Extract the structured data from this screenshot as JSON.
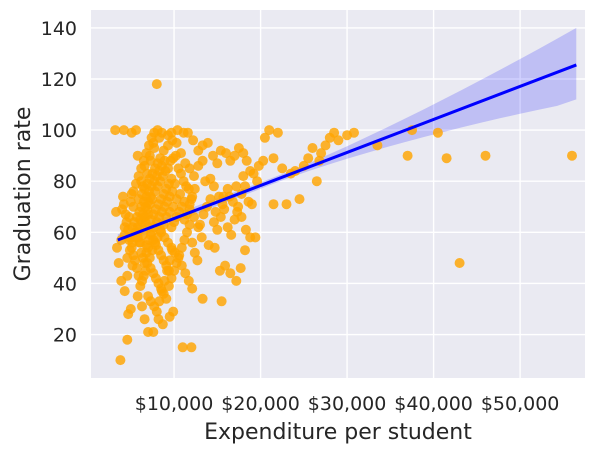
{
  "chart_data": {
    "type": "scatter",
    "title": "",
    "xlabel": "Expenditure per student",
    "ylabel": "Graduation rate",
    "xlim": [
      400,
      57500
    ],
    "ylim": [
      3,
      147
    ],
    "xticks": [
      10000,
      20000,
      30000,
      40000,
      50000
    ],
    "xtick_labels": [
      "$10,000",
      "$20,000",
      "$30,000",
      "$40,000",
      "$50,000"
    ],
    "yticks": [
      20,
      40,
      60,
      80,
      100,
      120,
      140
    ],
    "ytick_labels": [
      "20",
      "40",
      "60",
      "80",
      "100",
      "120",
      "140"
    ],
    "grid": true,
    "background": "#eaeaf2",
    "point_color": "#ffa500",
    "line_color": "#0000ff",
    "band_color": "#0000ff",
    "regression": {
      "x": [
        3500,
        56500
      ],
      "y": [
        57,
        125.5
      ],
      "ci_upper_end": 140,
      "ci_lower_end": 112
    },
    "points": [
      [
        3200,
        100
      ],
      [
        4200,
        100
      ],
      [
        5100,
        99
      ],
      [
        5600,
        100
      ],
      [
        3400,
        54
      ],
      [
        3600,
        48
      ],
      [
        3900,
        41
      ],
      [
        4300,
        37
      ],
      [
        4700,
        28
      ],
      [
        5000,
        30
      ],
      [
        3800,
        10
      ],
      [
        4600,
        43
      ],
      [
        5200,
        47
      ],
      [
        5800,
        35
      ],
      [
        6300,
        31
      ],
      [
        6600,
        26
      ],
      [
        7000,
        21
      ],
      [
        7600,
        21
      ],
      [
        8200,
        26
      ],
      [
        8700,
        24
      ],
      [
        9500,
        27
      ],
      [
        9900,
        29
      ],
      [
        11000,
        15
      ],
      [
        12000,
        15
      ],
      [
        13300,
        34
      ],
      [
        15500,
        33
      ],
      [
        4600,
        18
      ],
      [
        8000,
        118
      ],
      [
        3300,
        68
      ],
      [
        4000,
        69
      ],
      [
        4800,
        57
      ],
      [
        4300,
        62
      ],
      [
        5100,
        75
      ],
      [
        5800,
        90
      ],
      [
        6200,
        80
      ],
      [
        6600,
        86
      ],
      [
        7200,
        90
      ],
      [
        7600,
        95
      ],
      [
        8100,
        100
      ],
      [
        8600,
        99
      ],
      [
        9300,
        98
      ],
      [
        9700,
        99
      ],
      [
        10400,
        100
      ],
      [
        11100,
        99
      ],
      [
        11600,
        99
      ],
      [
        12200,
        96
      ],
      [
        12800,
        92
      ],
      [
        13300,
        94
      ],
      [
        13900,
        95
      ],
      [
        14500,
        90
      ],
      [
        15000,
        87
      ],
      [
        15400,
        92
      ],
      [
        16000,
        91
      ],
      [
        16500,
        88
      ],
      [
        17000,
        90
      ],
      [
        17500,
        93
      ],
      [
        18000,
        91
      ],
      [
        18400,
        88
      ],
      [
        18800,
        84
      ],
      [
        19200,
        83
      ],
      [
        19600,
        80
      ],
      [
        13600,
        80
      ],
      [
        14200,
        81
      ],
      [
        14600,
        78
      ],
      [
        15200,
        74
      ],
      [
        15700,
        74
      ],
      [
        16200,
        77
      ],
      [
        16800,
        72
      ],
      [
        17300,
        68
      ],
      [
        17800,
        66
      ],
      [
        18300,
        61
      ],
      [
        18800,
        58
      ],
      [
        13200,
        58
      ],
      [
        14000,
        55
      ],
      [
        14700,
        54
      ],
      [
        15300,
        45
      ],
      [
        15900,
        47
      ],
      [
        16500,
        44
      ],
      [
        17200,
        41
      ],
      [
        17700,
        46
      ],
      [
        18200,
        53
      ],
      [
        19400,
        58
      ],
      [
        12800,
        62
      ],
      [
        12300,
        66
      ],
      [
        11800,
        69
      ],
      [
        11200,
        72
      ],
      [
        10700,
        75
      ],
      [
        10300,
        73
      ],
      [
        9900,
        70
      ],
      [
        9500,
        68
      ],
      [
        9100,
        66
      ],
      [
        8800,
        63
      ],
      [
        8400,
        61
      ],
      [
        8100,
        58
      ],
      [
        7800,
        56
      ],
      [
        7500,
        53
      ],
      [
        7200,
        50
      ],
      [
        6900,
        48
      ],
      [
        6700,
        45
      ],
      [
        6500,
        43
      ],
      [
        6300,
        41
      ],
      [
        6100,
        39
      ],
      [
        5900,
        43
      ],
      [
        5700,
        46
      ],
      [
        5500,
        49
      ],
      [
        5300,
        51
      ],
      [
        5100,
        54
      ],
      [
        4900,
        58
      ],
      [
        4700,
        61
      ],
      [
        4500,
        64
      ],
      [
        4400,
        67
      ],
      [
        4200,
        71
      ],
      [
        4100,
        74
      ],
      [
        6000,
        61
      ],
      [
        6300,
        64
      ],
      [
        6600,
        66
      ],
      [
        6900,
        69
      ],
      [
        7200,
        71
      ],
      [
        7500,
        73
      ],
      [
        7800,
        76
      ],
      [
        8100,
        78
      ],
      [
        8400,
        80
      ],
      [
        8700,
        82
      ],
      [
        9000,
        84
      ],
      [
        9300,
        85
      ],
      [
        9600,
        88
      ],
      [
        9900,
        89
      ],
      [
        10200,
        90
      ],
      [
        10500,
        85
      ],
      [
        10800,
        83
      ],
      [
        11100,
        80
      ],
      [
        11400,
        78
      ],
      [
        11700,
        77
      ],
      [
        12000,
        73
      ],
      [
        6100,
        56
      ],
      [
        6400,
        59
      ],
      [
        6800,
        55
      ],
      [
        7100,
        57
      ],
      [
        7400,
        60
      ],
      [
        7700,
        62
      ],
      [
        8000,
        64
      ],
      [
        8300,
        66
      ],
      [
        8600,
        68
      ],
      [
        8900,
        70
      ],
      [
        9200,
        72
      ],
      [
        9500,
        74
      ],
      [
        9800,
        76
      ],
      [
        10100,
        79
      ],
      [
        7000,
        67
      ],
      [
        7300,
        65
      ],
      [
        7600,
        67
      ],
      [
        7900,
        69
      ],
      [
        8200,
        71
      ],
      [
        8500,
        73
      ],
      [
        8800,
        75
      ],
      [
        9100,
        77
      ],
      [
        9400,
        79
      ],
      [
        9700,
        81
      ],
      [
        6200,
        70
      ],
      [
        6500,
        72
      ],
      [
        6800,
        74
      ],
      [
        7100,
        76
      ],
      [
        7400,
        78
      ],
      [
        7700,
        80
      ],
      [
        8000,
        82
      ],
      [
        8300,
        84
      ],
      [
        8600,
        86
      ],
      [
        8900,
        88
      ],
      [
        5700,
        66
      ],
      [
        6000,
        68
      ],
      [
        6300,
        75
      ],
      [
        6600,
        77
      ],
      [
        6900,
        79
      ],
      [
        7200,
        81
      ],
      [
        7500,
        83
      ],
      [
        7800,
        85
      ],
      [
        8100,
        87
      ],
      [
        8400,
        89
      ],
      [
        5200,
        62
      ],
      [
        5400,
        64
      ],
      [
        5600,
        60
      ],
      [
        5800,
        58
      ],
      [
        6000,
        56
      ],
      [
        6200,
        52
      ],
      [
        6400,
        50
      ],
      [
        6600,
        48
      ],
      [
        6800,
        52
      ],
      [
        7000,
        54
      ],
      [
        7300,
        46
      ],
      [
        7600,
        44
      ],
      [
        7900,
        42
      ],
      [
        8200,
        40
      ],
      [
        8500,
        38
      ],
      [
        8800,
        36
      ],
      [
        9100,
        34
      ],
      [
        9400,
        39
      ],
      [
        9700,
        42
      ],
      [
        10000,
        45
      ],
      [
        10300,
        48
      ],
      [
        10600,
        51
      ],
      [
        10900,
        54
      ],
      [
        11200,
        57
      ],
      [
        11500,
        60
      ],
      [
        11800,
        63
      ],
      [
        12100,
        56
      ],
      [
        12400,
        52
      ],
      [
        12700,
        49
      ],
      [
        13000,
        63
      ],
      [
        13400,
        67
      ],
      [
        13800,
        70
      ],
      [
        14200,
        73
      ],
      [
        14600,
        64
      ],
      [
        15000,
        61
      ],
      [
        15400,
        66
      ],
      [
        15800,
        69
      ],
      [
        16200,
        62
      ],
      [
        16600,
        59
      ],
      [
        17000,
        65
      ],
      [
        17400,
        70
      ],
      [
        17800,
        75
      ],
      [
        18200,
        78
      ],
      [
        18600,
        72
      ],
      [
        19000,
        71
      ],
      [
        21000,
        100
      ],
      [
        22000,
        99
      ],
      [
        20500,
        97
      ],
      [
        21500,
        89
      ],
      [
        22500,
        85
      ],
      [
        23500,
        83
      ],
      [
        24500,
        73
      ],
      [
        25500,
        89
      ],
      [
        26000,
        93
      ],
      [
        26500,
        80
      ],
      [
        27000,
        91
      ],
      [
        27500,
        94
      ],
      [
        28000,
        97
      ],
      [
        28500,
        99
      ],
      [
        29000,
        96
      ],
      [
        30000,
        98
      ],
      [
        30800,
        99
      ],
      [
        33500,
        94
      ],
      [
        37000,
        90
      ],
      [
        37500,
        100
      ],
      [
        40500,
        99
      ],
      [
        41500,
        89
      ],
      [
        43000,
        48
      ],
      [
        46000,
        90
      ],
      [
        56000,
        90
      ],
      [
        21500,
        71
      ],
      [
        23000,
        71
      ],
      [
        3900,
        57
      ],
      [
        4300,
        59
      ],
      [
        4800,
        66
      ],
      [
        5300,
        70
      ],
      [
        5900,
        73
      ],
      [
        6400,
        78
      ],
      [
        6900,
        83
      ],
      [
        7300,
        88
      ],
      [
        7700,
        93
      ],
      [
        8300,
        97
      ],
      [
        8800,
        92
      ],
      [
        9300,
        94
      ],
      [
        9800,
        96
      ],
      [
        10300,
        95
      ],
      [
        10800,
        91
      ],
      [
        11300,
        87
      ],
      [
        11800,
        85
      ],
      [
        12300,
        82
      ],
      [
        12800,
        86
      ],
      [
        13300,
        88
      ],
      [
        8500,
        60
      ],
      [
        8900,
        58
      ],
      [
        9300,
        56
      ],
      [
        9700,
        54
      ],
      [
        10100,
        52
      ],
      [
        10500,
        50
      ],
      [
        10900,
        47
      ],
      [
        11300,
        44
      ],
      [
        11700,
        41
      ],
      [
        12100,
        38
      ],
      [
        7000,
        35
      ],
      [
        7300,
        33
      ],
      [
        7700,
        31
      ],
      [
        8000,
        29
      ],
      [
        8300,
        33
      ],
      [
        8600,
        37
      ],
      [
        8900,
        41
      ],
      [
        9200,
        45
      ],
      [
        9500,
        49
      ],
      [
        9800,
        53
      ],
      [
        5000,
        72
      ],
      [
        5300,
        76
      ],
      [
        5600,
        79
      ],
      [
        5900,
        82
      ],
      [
        6200,
        85
      ],
      [
        6500,
        88
      ],
      [
        6800,
        91
      ],
      [
        7100,
        94
      ],
      [
        7400,
        97
      ],
      [
        7700,
        99
      ],
      [
        6700,
        64
      ],
      [
        7000,
        62
      ],
      [
        7300,
        59
      ],
      [
        7600,
        57
      ],
      [
        7900,
        55
      ],
      [
        8200,
        53
      ],
      [
        8500,
        51
      ],
      [
        8800,
        49
      ],
      [
        9100,
        47
      ],
      [
        9400,
        45
      ],
      [
        9700,
        62
      ],
      [
        10000,
        64
      ],
      [
        10300,
        66
      ],
      [
        10600,
        68
      ],
      [
        10900,
        70
      ],
      [
        11200,
        65
      ],
      [
        11500,
        67
      ],
      [
        11800,
        71
      ],
      [
        12100,
        74
      ],
      [
        12400,
        77
      ],
      [
        4600,
        50
      ],
      [
        4900,
        53
      ],
      [
        5200,
        56
      ],
      [
        5500,
        58
      ],
      [
        5800,
        62
      ],
      [
        6100,
        65
      ],
      [
        6400,
        67
      ],
      [
        6700,
        70
      ],
      [
        7000,
        72
      ],
      [
        7300,
        74
      ],
      [
        14800,
        68
      ],
      [
        15600,
        71
      ],
      [
        16400,
        74
      ],
      [
        17200,
        78
      ],
      [
        18000,
        82
      ],
      [
        19800,
        86
      ],
      [
        20300,
        88
      ],
      [
        24000,
        84
      ],
      [
        25000,
        86
      ],
      [
        26800,
        88
      ]
    ]
  }
}
